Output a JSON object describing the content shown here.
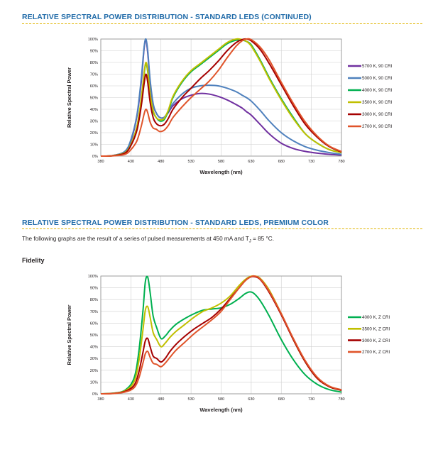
{
  "sections": [
    {
      "title": "RELATIVE SPECTRAL POWER DISTRIBUTION - STANDARD LEDS (CONTINUED)"
    },
    {
      "title": "RELATIVE SPECTRAL POWER DISTRIBUTION - STANDARD LEDS, PREMIUM COLOR"
    }
  ],
  "intro": {
    "prefix": "The following graphs are the result of a series of pulsed measurements at 450 mA and T",
    "sub": "J",
    "suffix": " = 85 °C."
  },
  "subheading": "Fidelity",
  "colors": {
    "heading": "#1f6aa8",
    "rule": "#e0b400"
  },
  "chart_data": [
    {
      "type": "line",
      "title": "",
      "xlabel": "Wavelength (nm)",
      "ylabel": "Relative Spectral Power",
      "xlim": [
        380,
        780
      ],
      "ylim": [
        0,
        100
      ],
      "x_ticks": [
        "380",
        "430",
        "480",
        "530",
        "580",
        "630",
        "680",
        "730",
        "780"
      ],
      "y_ticks": [
        "0%",
        "10%",
        "20%",
        "30%",
        "40%",
        "50%",
        "60%",
        "70%",
        "80%",
        "90%",
        "100%"
      ],
      "grid": true,
      "legend_position": "right",
      "x": [
        380,
        400,
        420,
        430,
        440,
        447,
        452,
        455,
        458,
        462,
        467,
        472,
        478,
        485,
        492,
        500,
        515,
        530,
        545,
        560,
        575,
        590,
        605,
        615,
        622,
        630,
        645,
        660,
        680,
        700,
        720,
        740,
        760,
        780
      ],
      "series": [
        {
          "name": "5700 K, 90 CRI",
          "color": "#7030a0",
          "values": [
            0,
            0.5,
            4,
            13,
            34,
            62,
            92,
            99,
            88,
            63,
            44,
            37,
            33,
            33,
            37,
            43,
            49,
            52,
            53.5,
            53,
            51,
            48,
            44,
            41,
            38,
            35,
            27,
            19,
            11,
            6.5,
            4,
            2.5,
            1.5,
            0.8
          ]
        },
        {
          "name": "5000 K, 90 CRI",
          "color": "#4f81bd",
          "values": [
            0,
            0.5,
            4,
            14,
            35,
            65,
            93,
            100,
            90,
            65,
            45,
            37,
            33,
            33,
            38,
            45,
            53,
            58,
            60,
            60.5,
            60,
            58,
            55,
            52,
            50,
            47,
            39,
            30,
            20,
            13,
            8,
            5,
            3,
            1.5
          ]
        },
        {
          "name": "4000 K, 90 CRI",
          "color": "#00b050",
          "values": [
            0,
            0.4,
            3,
            10,
            25,
            47,
            70,
            79,
            72,
            52,
            38,
            33,
            30,
            31,
            38,
            50,
            63,
            72,
            78,
            84,
            90,
            96,
            99,
            99,
            98,
            95,
            82,
            67,
            49,
            33,
            19,
            11,
            5.5,
            3
          ]
        },
        {
          "name": "3500 K, 90 CRI",
          "color": "#c0bf00",
          "values": [
            0,
            0.4,
            3,
            10,
            25,
            48,
            71,
            80,
            73,
            53,
            39,
            33,
            31,
            32,
            39,
            51,
            64,
            73,
            79,
            85,
            91,
            97,
            100,
            99.5,
            98,
            94,
            81,
            66,
            48,
            32,
            19,
            11,
            5.5,
            3
          ]
        },
        {
          "name": "3000 K, 90 CRI",
          "color": "#a50000",
          "values": [
            0,
            0.3,
            2.5,
            9,
            22,
            42,
            62,
            70,
            63,
            46,
            33,
            28,
            26,
            27,
            32,
            40,
            50,
            58,
            66,
            73,
            81,
            90,
            97,
            99.5,
            100,
            98.5,
            91,
            79,
            61,
            43,
            27,
            16,
            8,
            3.5
          ]
        },
        {
          "name": "2700 K, 90 CRI",
          "color": "#e0542a",
          "values": [
            0,
            0.2,
            1.5,
            5.5,
            13,
            25,
            36,
            40,
            37,
            29,
            24,
            23,
            21,
            22,
            26,
            33,
            42,
            50,
            57,
            64,
            73,
            84,
            94,
            98.5,
            100,
            99.5,
            93,
            82,
            63,
            45,
            29,
            17,
            8.5,
            4
          ]
        }
      ]
    },
    {
      "type": "line",
      "title": "",
      "xlabel": "Wavelength (nm)",
      "ylabel": "Relative Spectral Power",
      "xlim": [
        380,
        780
      ],
      "ylim": [
        0,
        100
      ],
      "x_ticks": [
        "380",
        "430",
        "480",
        "530",
        "580",
        "630",
        "680",
        "730",
        "780"
      ],
      "y_ticks": [
        "0%",
        "10%",
        "20%",
        "30%",
        "40%",
        "50%",
        "60%",
        "70%",
        "80%",
        "90%",
        "100%"
      ],
      "grid": true,
      "legend_position": "right",
      "x": [
        380,
        400,
        420,
        435,
        443,
        450,
        454,
        458,
        462,
        467,
        473,
        480,
        487,
        495,
        505,
        520,
        535,
        550,
        565,
        580,
        595,
        610,
        620,
        628,
        635,
        645,
        660,
        680,
        700,
        720,
        740,
        760,
        780
      ],
      "series": [
        {
          "name": "4000 K, Z CRI",
          "color": "#00b050",
          "values": [
            0,
            0.5,
            3,
            13,
            35,
            70,
            95,
            99,
            86,
            66,
            56,
            47,
            49,
            54,
            59,
            64,
            68,
            71,
            72,
            73,
            76,
            81,
            85,
            86.5,
            85,
            79,
            66,
            46,
            29,
            16,
            8,
            3.5,
            1.5
          ]
        },
        {
          "name": "3500 K, Z CRI",
          "color": "#c0bf00",
          "values": [
            0,
            0.4,
            2.5,
            10,
            27,
            54,
            71,
            74,
            65,
            52,
            46,
            40,
            43,
            48,
            53,
            59,
            65,
            70,
            73,
            77,
            83,
            92,
            97,
            99.5,
            100,
            98,
            88,
            68,
            46,
            27,
            13,
            6,
            3
          ]
        },
        {
          "name": "3000 K, Z CRI",
          "color": "#a50000",
          "values": [
            0,
            0.3,
            2,
            7,
            18,
            35,
            45,
            47,
            40,
            32,
            30,
            27,
            30,
            36,
            42,
            49,
            55,
            60,
            65,
            72,
            81,
            90,
            96,
            99,
            99.5,
            97,
            86,
            67,
            46,
            27,
            13,
            6,
            3
          ]
        },
        {
          "name": "2700 K, Z CRI",
          "color": "#e0542a",
          "values": [
            0,
            0.2,
            1.5,
            5,
            13,
            26,
            34,
            36,
            31,
            26,
            25,
            23,
            26,
            31,
            37,
            44,
            51,
            57,
            63,
            70,
            80,
            90,
            96,
            99,
            100,
            97.5,
            87,
            68,
            47,
            28,
            14,
            6.5,
            3.5
          ]
        }
      ]
    }
  ]
}
